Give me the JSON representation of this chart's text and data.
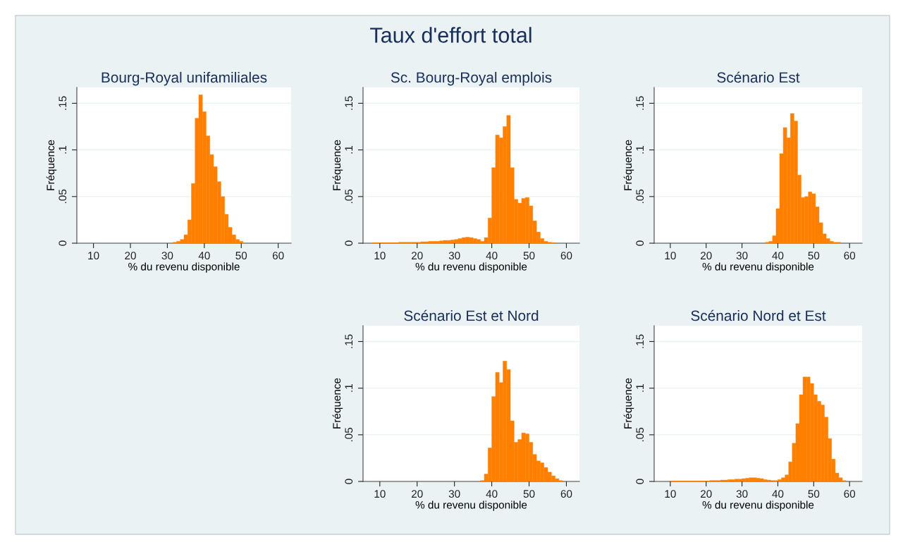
{
  "chart_data": [
    {
      "type": "other",
      "title": "Taux d'effort total"
    },
    {
      "type": "histogram",
      "title": "Bourg-Royal unifamiliales",
      "xlabel": "% du revenu disponible",
      "ylabel": "Fréquence",
      "color": "#ff8000",
      "grid": "y",
      "xlim": [
        5.5,
        63.5
      ],
      "ylim": [
        0,
        0.167
      ],
      "xticks": [
        10,
        20,
        30,
        40,
        50,
        60
      ],
      "yticks": [
        0,
        {
          "value": 0.05,
          "label": ".05"
        },
        {
          "value": 0.1,
          "label": ".1"
        },
        {
          "value": 0.15,
          "label": ".15"
        }
      ],
      "bins": [
        31.5,
        32.5,
        33.5,
        34.5,
        35.5,
        36.5,
        37.5,
        38.5,
        39.5,
        40.5,
        41.5,
        42.5,
        43.5,
        44.5,
        45.5,
        46.5,
        47.5,
        48.5,
        49.5,
        50.5
      ],
      "values": [
        0.001,
        0.002,
        0.004,
        0.009,
        0.025,
        0.064,
        0.134,
        0.159,
        0.141,
        0.115,
        0.095,
        0.082,
        0.066,
        0.05,
        0.031,
        0.017,
        0.009,
        0.004,
        0.002
      ]
    },
    {
      "type": "histogram",
      "title": "Sc. Bourg-Royal emplois",
      "xlabel": "% du revenu disponible",
      "ylabel": "Fréquence",
      "color": "#ff8000",
      "grid": "y",
      "xlim": [
        5.5,
        63.5
      ],
      "ylim": [
        0,
        0.167
      ],
      "xticks": [
        10,
        20,
        30,
        40,
        50,
        60
      ],
      "yticks": [
        0,
        {
          "value": 0.05,
          "label": ".05"
        },
        {
          "value": 0.1,
          "label": ".1"
        },
        {
          "value": 0.15,
          "label": ".15"
        }
      ],
      "bins": [
        8,
        9,
        10,
        11,
        12,
        13,
        14,
        15,
        16,
        17,
        18,
        19,
        20,
        21,
        22,
        23,
        24,
        25,
        26,
        27,
        28,
        29,
        30,
        31,
        32,
        33,
        34,
        35,
        36,
        37,
        38,
        39,
        40,
        41,
        42,
        43,
        44,
        45,
        46,
        47,
        48,
        49,
        50,
        51,
        52,
        53,
        54,
        55,
        56,
        57
      ],
      "values": [
        0.0005,
        0.0005,
        0.0005,
        0.0005,
        0.0005,
        0.0005,
        0.0005,
        0.001,
        0.001,
        0.001,
        0.001,
        0.001,
        0.001,
        0.0015,
        0.0015,
        0.002,
        0.002,
        0.002,
        0.0025,
        0.003,
        0.003,
        0.0035,
        0.004,
        0.005,
        0.006,
        0.0065,
        0.006,
        0.005,
        0.004,
        0.002,
        0.006,
        0.027,
        0.081,
        0.116,
        0.113,
        0.125,
        0.137,
        0.081,
        0.047,
        0.043,
        0.048,
        0.049,
        0.04,
        0.024,
        0.012,
        0.005,
        0.002,
        0.001,
        0.0005
      ]
    },
    {
      "type": "histogram",
      "title": "Scénario Est",
      "xlabel": "% du revenu disponible",
      "ylabel": "Fréquence",
      "color": "#ff8000",
      "grid": "y",
      "xlim": [
        5.5,
        63.5
      ],
      "ylim": [
        0,
        0.167
      ],
      "xticks": [
        10,
        20,
        30,
        40,
        50,
        60
      ],
      "yticks": [
        0,
        {
          "value": 0.05,
          "label": ".05"
        },
        {
          "value": 0.1,
          "label": ".1"
        },
        {
          "value": 0.15,
          "label": ".15"
        }
      ],
      "bins": [
        36.5,
        37.5,
        38.5,
        39.5,
        40.5,
        41.5,
        42.5,
        43.5,
        44.5,
        45.5,
        46.5,
        47.5,
        48.5,
        49.5,
        50.5,
        51.5,
        52.5,
        53.5,
        54.5,
        55.5,
        56.5,
        57.5
      ],
      "values": [
        0.001,
        0.002,
        0.008,
        0.037,
        0.096,
        0.124,
        0.113,
        0.139,
        0.131,
        0.073,
        0.049,
        0.05,
        0.055,
        0.053,
        0.039,
        0.022,
        0.01,
        0.005,
        0.002,
        0.001,
        0.001
      ]
    },
    {
      "type": "histogram",
      "title": "Scénario Est et Nord",
      "xlabel": "% du revenu disponible",
      "ylabel": "Fréquence",
      "color": "#ff8000",
      "grid": "y",
      "xlim": [
        5.5,
        63.5
      ],
      "ylim": [
        0,
        0.167
      ],
      "xticks": [
        10,
        20,
        30,
        40,
        50,
        60
      ],
      "yticks": [
        0,
        {
          "value": 0.05,
          "label": ".05"
        },
        {
          "value": 0.1,
          "label": ".1"
        },
        {
          "value": 0.15,
          "label": ".15"
        }
      ],
      "bins": [
        37,
        38,
        39,
        40,
        41,
        42,
        43,
        44,
        45,
        46,
        47,
        48,
        49,
        50,
        51,
        52,
        53,
        54,
        55,
        56,
        57,
        58,
        59
      ],
      "values": [
        0.001,
        0.008,
        0.036,
        0.091,
        0.117,
        0.106,
        0.129,
        0.12,
        0.065,
        0.042,
        0.045,
        0.052,
        0.051,
        0.042,
        0.029,
        0.022,
        0.02,
        0.015,
        0.01,
        0.006,
        0.003,
        0.001
      ]
    },
    {
      "type": "histogram",
      "title": "Scénario Nord et Est",
      "xlabel": "% du revenu disponible",
      "ylabel": "Fréquence",
      "color": "#ff8000",
      "grid": "y",
      "xlim": [
        5.5,
        63.5
      ],
      "ylim": [
        0,
        0.167
      ],
      "xticks": [
        10,
        20,
        30,
        40,
        50,
        60
      ],
      "yticks": [
        0,
        {
          "value": 0.05,
          "label": ".05"
        },
        {
          "value": 0.1,
          "label": ".1"
        },
        {
          "value": 0.15,
          "label": ".15"
        }
      ],
      "bins": [
        10,
        11,
        12,
        13,
        14,
        15,
        16,
        17,
        18,
        19,
        20,
        21,
        22,
        23,
        24,
        25,
        26,
        27,
        28,
        29,
        30,
        31,
        32,
        33,
        34,
        35,
        36,
        37,
        38,
        39,
        40,
        41,
        42,
        43,
        44,
        45,
        46,
        47,
        48,
        49,
        50,
        51,
        52,
        53,
        54,
        55,
        56,
        57,
        58,
        59
      ],
      "values": [
        0.0005,
        0.0005,
        0.0005,
        0.0005,
        0.0005,
        0.0005,
        0.0005,
        0.0005,
        0.0005,
        0.0005,
        0.0005,
        0.001,
        0.001,
        0.001,
        0.0015,
        0.0015,
        0.002,
        0.002,
        0.0025,
        0.0025,
        0.003,
        0.0035,
        0.004,
        0.004,
        0.0035,
        0.003,
        0.002,
        0.0015,
        0.001,
        0.001,
        0.002,
        0.004,
        0.007,
        0.021,
        0.041,
        0.062,
        0.093,
        0.112,
        0.112,
        0.105,
        0.093,
        0.086,
        0.082,
        0.069,
        0.046,
        0.024,
        0.009,
        0.004,
        0.001
      ]
    }
  ]
}
